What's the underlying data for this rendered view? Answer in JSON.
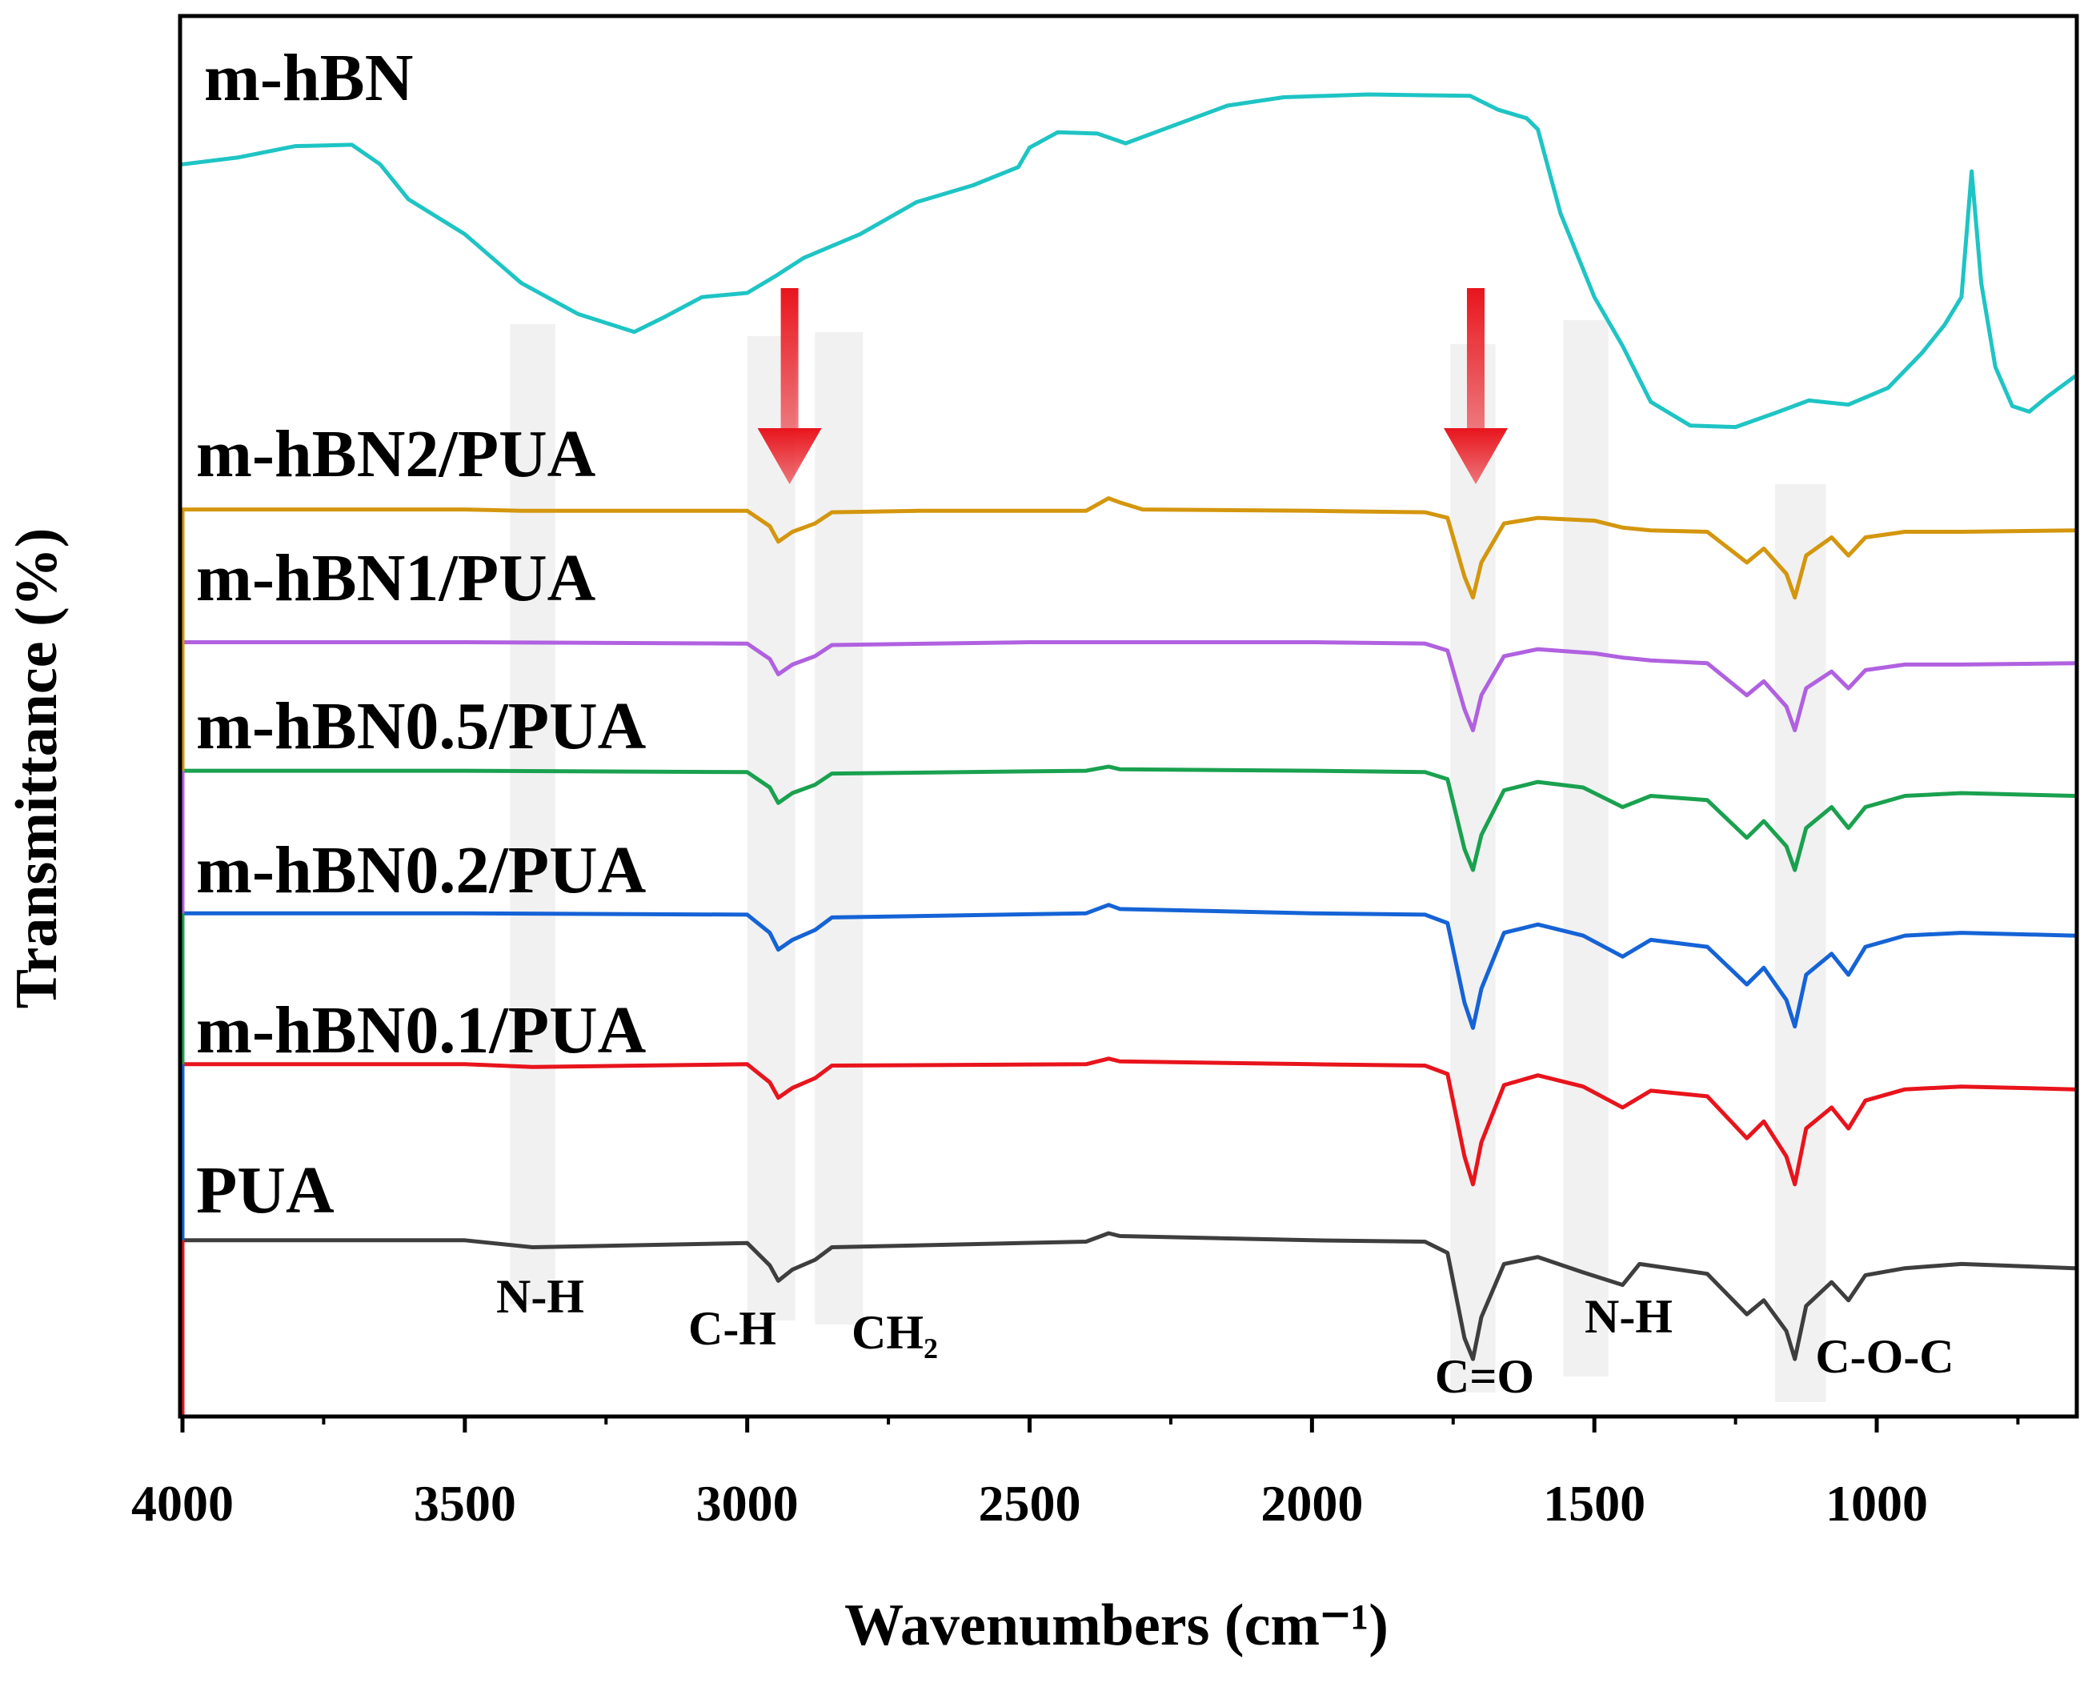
{
  "chart_data": {
    "type": "line",
    "title": "",
    "xlabel": "Wavenumbers (cm⁻¹)",
    "ylabel": "Transmittance (%)",
    "xlim": [
      4000,
      650
    ],
    "xticks": [
      4000,
      3500,
      3000,
      2500,
      2000,
      1500,
      1000
    ],
    "xtick_labels": [
      "4000",
      "3500",
      "3000",
      "2500",
      "2000",
      "1500",
      "1000"
    ],
    "y_units": "arbitrary (stacked, offset)",
    "ylim": [
      0,
      100
    ],
    "bands": [
      {
        "name": "N-H",
        "label": "N-H",
        "from": 3420,
        "to": 3340
      },
      {
        "name": "C-H",
        "label": "C-H",
        "from": 3000,
        "to": 2915
      },
      {
        "name": "CH2",
        "label": "CH₂",
        "from": 2880,
        "to": 2795
      },
      {
        "name": "C=O",
        "label": "C=O",
        "from": 1755,
        "to": 1675
      },
      {
        "name": "N-H2",
        "label": "N-H",
        "from": 1555,
        "to": 1475
      },
      {
        "name": "C-O-C",
        "label": "C-O-C",
        "from": 1180,
        "to": 1090
      }
    ],
    "arrows": [
      {
        "name": "ch-arrow",
        "x": 2925,
        "direction": "down",
        "color": "#e8141c"
      },
      {
        "name": "co-arrow",
        "x": 1710,
        "direction": "down",
        "color": "#e8141c"
      }
    ],
    "series": [
      {
        "name": "m-hBN",
        "color": "#1fc4c4",
        "points": [
          [
            4000,
            89.5
          ],
          [
            3900,
            90
          ],
          [
            3800,
            90.8
          ],
          [
            3700,
            90.9
          ],
          [
            3650,
            89.5
          ],
          [
            3600,
            87
          ],
          [
            3500,
            84.5
          ],
          [
            3400,
            81
          ],
          [
            3300,
            78.8
          ],
          [
            3200,
            77.5
          ],
          [
            3150,
            78.5
          ],
          [
            3080,
            80
          ],
          [
            3000,
            80.3
          ],
          [
            2950,
            81.5
          ],
          [
            2900,
            82.8
          ],
          [
            2800,
            84.5
          ],
          [
            2700,
            86.8
          ],
          [
            2600,
            88
          ],
          [
            2520,
            89.3
          ],
          [
            2500,
            90.7
          ],
          [
            2450,
            91.8
          ],
          [
            2380,
            91.7
          ],
          [
            2330,
            91
          ],
          [
            2250,
            92.2
          ],
          [
            2150,
            93.7
          ],
          [
            2050,
            94.3
          ],
          [
            1900,
            94.5
          ],
          [
            1720,
            94.4
          ],
          [
            1670,
            93.4
          ],
          [
            1620,
            92.8
          ],
          [
            1600,
            92
          ],
          [
            1560,
            86
          ],
          [
            1500,
            80
          ],
          [
            1450,
            76.5
          ],
          [
            1400,
            72.5
          ],
          [
            1330,
            70.8
          ],
          [
            1250,
            70.7
          ],
          [
            1180,
            71.7
          ],
          [
            1120,
            72.6
          ],
          [
            1050,
            72.3
          ],
          [
            980,
            73.5
          ],
          [
            920,
            76
          ],
          [
            880,
            78
          ],
          [
            850,
            80
          ],
          [
            832,
            89
          ],
          [
            815,
            81
          ],
          [
            790,
            75
          ],
          [
            760,
            72.2
          ],
          [
            730,
            71.8
          ],
          [
            700,
            72.8
          ],
          [
            650,
            74.3
          ]
        ]
      },
      {
        "name": "m-hBN2/PUA",
        "label": "m-hBN2/PUA",
        "color": "#d4960e",
        "points": [
          [
            4000,
            64.8
          ],
          [
            3500,
            64.8
          ],
          [
            3400,
            64.7
          ],
          [
            3000,
            64.7
          ],
          [
            2960,
            63.6
          ],
          [
            2945,
            62.5
          ],
          [
            2920,
            63.2
          ],
          [
            2880,
            63.8
          ],
          [
            2850,
            64.6
          ],
          [
            2700,
            64.7
          ],
          [
            2400,
            64.7
          ],
          [
            2360,
            65.6
          ],
          [
            2340,
            65.3
          ],
          [
            2300,
            64.8
          ],
          [
            2000,
            64.7
          ],
          [
            1800,
            64.6
          ],
          [
            1760,
            64.2
          ],
          [
            1730,
            60
          ],
          [
            1715,
            58.5
          ],
          [
            1700,
            61
          ],
          [
            1660,
            63.8
          ],
          [
            1600,
            64.2
          ],
          [
            1500,
            64
          ],
          [
            1450,
            63.5
          ],
          [
            1400,
            63.3
          ],
          [
            1300,
            63.2
          ],
          [
            1230,
            61
          ],
          [
            1200,
            62
          ],
          [
            1160,
            60.2
          ],
          [
            1145,
            58.5
          ],
          [
            1125,
            61.5
          ],
          [
            1080,
            62.8
          ],
          [
            1050,
            61.5
          ],
          [
            1020,
            62.8
          ],
          [
            950,
            63.2
          ],
          [
            850,
            63.2
          ],
          [
            650,
            63.3
          ]
        ]
      },
      {
        "name": "m-hBN1/PUA",
        "label": "m-hBN1/PUA",
        "color": "#b061e0",
        "points": [
          [
            4000,
            55.3
          ],
          [
            3500,
            55.3
          ],
          [
            3000,
            55.2
          ],
          [
            2960,
            54.1
          ],
          [
            2945,
            53
          ],
          [
            2920,
            53.7
          ],
          [
            2880,
            54.3
          ],
          [
            2850,
            55.1
          ],
          [
            2500,
            55.3
          ],
          [
            2000,
            55.3
          ],
          [
            1800,
            55.2
          ],
          [
            1760,
            54.7
          ],
          [
            1730,
            50.5
          ],
          [
            1715,
            49
          ],
          [
            1700,
            51.5
          ],
          [
            1660,
            54.3
          ],
          [
            1600,
            54.8
          ],
          [
            1500,
            54.5
          ],
          [
            1450,
            54.2
          ],
          [
            1400,
            54
          ],
          [
            1300,
            53.8
          ],
          [
            1230,
            51.5
          ],
          [
            1200,
            52.5
          ],
          [
            1160,
            50.7
          ],
          [
            1145,
            49
          ],
          [
            1125,
            52
          ],
          [
            1080,
            53.2
          ],
          [
            1050,
            52
          ],
          [
            1020,
            53.3
          ],
          [
            950,
            53.7
          ],
          [
            850,
            53.7
          ],
          [
            650,
            53.8
          ]
        ]
      },
      {
        "name": "m-hBN0.5/PUA",
        "label": "m-hBN0.5/PUA",
        "color": "#1aa14f",
        "points": [
          [
            4000,
            46.1
          ],
          [
            3500,
            46.1
          ],
          [
            3000,
            46
          ],
          [
            2960,
            44.9
          ],
          [
            2945,
            43.8
          ],
          [
            2920,
            44.5
          ],
          [
            2880,
            45.1
          ],
          [
            2850,
            45.9
          ],
          [
            2400,
            46.1
          ],
          [
            2360,
            46.4
          ],
          [
            2340,
            46.2
          ],
          [
            2000,
            46.1
          ],
          [
            1800,
            46
          ],
          [
            1760,
            45.5
          ],
          [
            1730,
            40.5
          ],
          [
            1715,
            39
          ],
          [
            1700,
            41.5
          ],
          [
            1660,
            44.7
          ],
          [
            1600,
            45.3
          ],
          [
            1520,
            44.9
          ],
          [
            1450,
            43.5
          ],
          [
            1400,
            44.3
          ],
          [
            1300,
            44
          ],
          [
            1230,
            41.3
          ],
          [
            1200,
            42.5
          ],
          [
            1160,
            40.7
          ],
          [
            1145,
            39
          ],
          [
            1125,
            42
          ],
          [
            1080,
            43.5
          ],
          [
            1050,
            42
          ],
          [
            1020,
            43.5
          ],
          [
            950,
            44.3
          ],
          [
            850,
            44.5
          ],
          [
            650,
            44.3
          ]
        ]
      },
      {
        "name": "m-hBN0.2/PUA",
        "label": "m-hBN0.2/PUA",
        "color": "#1563d6",
        "points": [
          [
            4000,
            35.9
          ],
          [
            3500,
            35.9
          ],
          [
            3000,
            35.8
          ],
          [
            2960,
            34.5
          ],
          [
            2945,
            33.3
          ],
          [
            2920,
            34
          ],
          [
            2880,
            34.7
          ],
          [
            2850,
            35.6
          ],
          [
            2400,
            35.9
          ],
          [
            2360,
            36.5
          ],
          [
            2340,
            36.2
          ],
          [
            2000,
            35.9
          ],
          [
            1800,
            35.8
          ],
          [
            1760,
            35.2
          ],
          [
            1730,
            29.5
          ],
          [
            1715,
            27.7
          ],
          [
            1700,
            30.5
          ],
          [
            1660,
            34.5
          ],
          [
            1600,
            35.1
          ],
          [
            1520,
            34.3
          ],
          [
            1450,
            32.8
          ],
          [
            1400,
            34
          ],
          [
            1300,
            33.5
          ],
          [
            1230,
            30.8
          ],
          [
            1200,
            32
          ],
          [
            1160,
            29.7
          ],
          [
            1145,
            27.8
          ],
          [
            1125,
            31.5
          ],
          [
            1080,
            33
          ],
          [
            1050,
            31.5
          ],
          [
            1020,
            33.5
          ],
          [
            950,
            34.3
          ],
          [
            850,
            34.5
          ],
          [
            650,
            34.3
          ]
        ]
      },
      {
        "name": "m-hBN0.1/PUA",
        "label": "m-hBN0.1/PUA",
        "color": "#e8141c",
        "points": [
          [
            4000,
            25.1
          ],
          [
            3500,
            25.1
          ],
          [
            3380,
            24.9
          ],
          [
            3000,
            25.1
          ],
          [
            2960,
            23.8
          ],
          [
            2945,
            22.7
          ],
          [
            2920,
            23.4
          ],
          [
            2880,
            24.1
          ],
          [
            2850,
            25
          ],
          [
            2400,
            25.1
          ],
          [
            2360,
            25.5
          ],
          [
            2340,
            25.3
          ],
          [
            2000,
            25.1
          ],
          [
            1800,
            25
          ],
          [
            1760,
            24.4
          ],
          [
            1730,
            18.5
          ],
          [
            1715,
            16.5
          ],
          [
            1700,
            19.5
          ],
          [
            1660,
            23.6
          ],
          [
            1600,
            24.3
          ],
          [
            1520,
            23.5
          ],
          [
            1450,
            22
          ],
          [
            1400,
            23.2
          ],
          [
            1300,
            22.8
          ],
          [
            1230,
            19.8
          ],
          [
            1200,
            21
          ],
          [
            1160,
            18.5
          ],
          [
            1145,
            16.5
          ],
          [
            1125,
            20.5
          ],
          [
            1080,
            22
          ],
          [
            1050,
            20.5
          ],
          [
            1020,
            22.5
          ],
          [
            950,
            23.3
          ],
          [
            850,
            23.5
          ],
          [
            650,
            23.3
          ]
        ]
      },
      {
        "name": "PUA",
        "label": "PUA",
        "color": "#3e3e3e",
        "points": [
          [
            4000,
            12.5
          ],
          [
            3500,
            12.5
          ],
          [
            3380,
            12
          ],
          [
            3000,
            12.3
          ],
          [
            2960,
            10.7
          ],
          [
            2945,
            9.6
          ],
          [
            2920,
            10.4
          ],
          [
            2880,
            11.1
          ],
          [
            2850,
            12
          ],
          [
            2400,
            12.4
          ],
          [
            2360,
            13
          ],
          [
            2340,
            12.8
          ],
          [
            2000,
            12.5
          ],
          [
            1800,
            12.4
          ],
          [
            1760,
            11.6
          ],
          [
            1730,
            5.5
          ],
          [
            1715,
            4
          ],
          [
            1700,
            7
          ],
          [
            1660,
            10.8
          ],
          [
            1600,
            11.3
          ],
          [
            1520,
            10.2
          ],
          [
            1450,
            9.3
          ],
          [
            1420,
            10.8
          ],
          [
            1300,
            10.1
          ],
          [
            1230,
            7.2
          ],
          [
            1200,
            8.2
          ],
          [
            1160,
            6
          ],
          [
            1145,
            4
          ],
          [
            1125,
            7.8
          ],
          [
            1080,
            9.5
          ],
          [
            1050,
            8.2
          ],
          [
            1020,
            10
          ],
          [
            950,
            10.5
          ],
          [
            850,
            10.8
          ],
          [
            650,
            10.5
          ]
        ]
      }
    ]
  }
}
